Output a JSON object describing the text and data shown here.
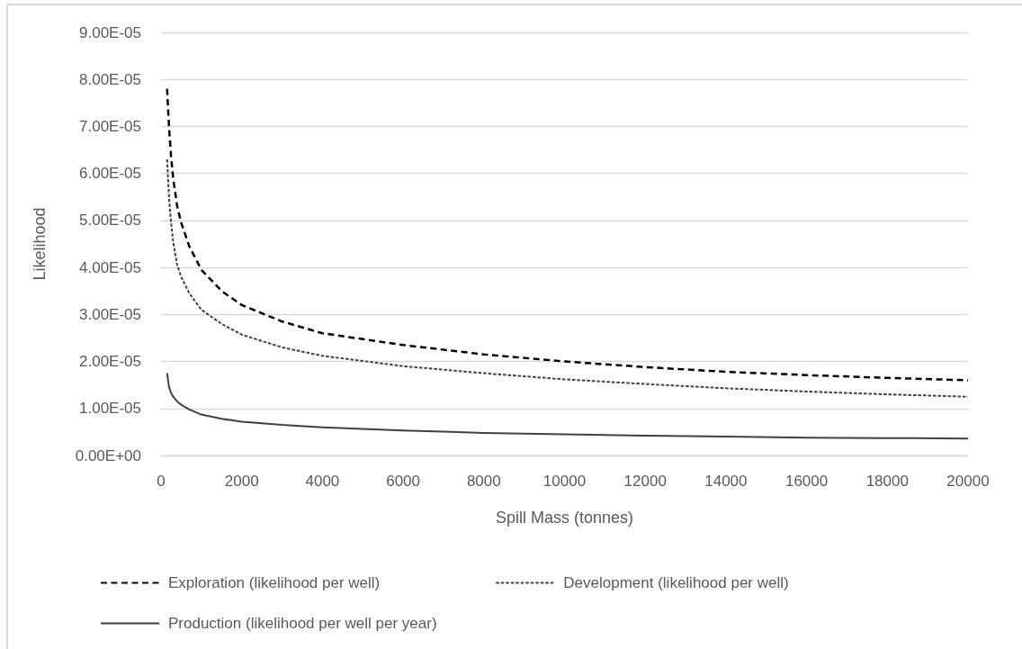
{
  "chart_data": {
    "type": "line",
    "xlabel": "Spill Mass (tonnes)",
    "ylabel": "Likelihood",
    "x": [
      150,
      200,
      250,
      300,
      400,
      500,
      700,
      1000,
      1500,
      2000,
      3000,
      4000,
      6000,
      8000,
      10000,
      12000,
      14000,
      16000,
      18000,
      20000
    ],
    "series": [
      {
        "name": "Exploration (likelihood per well)",
        "color": "#000000",
        "line_style": "dashed",
        "values": [
          7.8e-05,
          6.95e-05,
          6.35e-05,
          5.9e-05,
          5.3e-05,
          4.95e-05,
          4.45e-05,
          3.95e-05,
          3.5e-05,
          3.2e-05,
          2.85e-05,
          2.6e-05,
          2.35e-05,
          2.15e-05,
          2e-05,
          1.88e-05,
          1.78e-05,
          1.71e-05,
          1.65e-05,
          1.6e-05
        ]
      },
      {
        "name": "Development (likelihood per well)",
        "color": "#404040",
        "line_style": "dotted",
        "values": [
          6.3e-05,
          5.45e-05,
          4.95e-05,
          4.55e-05,
          4.05e-05,
          3.8e-05,
          3.45e-05,
          3.1e-05,
          2.8e-05,
          2.57e-05,
          2.3e-05,
          2.12e-05,
          1.9e-05,
          1.75e-05,
          1.62e-05,
          1.52e-05,
          1.43e-05,
          1.36e-05,
          1.3e-05,
          1.25e-05
        ]
      },
      {
        "name": "Production (likelihood per well per year)",
        "color": "#404040",
        "line_style": "solid",
        "values": [
          1.75e-05,
          1.45e-05,
          1.33e-05,
          1.25e-05,
          1.15e-05,
          1.08e-05,
          9.8e-06,
          8.7e-06,
          7.8e-06,
          7.2e-06,
          6.5e-06,
          6e-06,
          5.3e-06,
          4.8e-06,
          4.5e-06,
          4.2e-06,
          4e-06,
          3.8e-06,
          3.7e-06,
          3.6e-06
        ]
      }
    ],
    "xlim": [
      0,
      20000
    ],
    "xticks": [
      0,
      2000,
      4000,
      6000,
      8000,
      10000,
      12000,
      14000,
      16000,
      18000,
      20000
    ],
    "ylim": [
      0,
      9e-05
    ],
    "yticks": [
      {
        "value": 0,
        "label": "0.00E+00"
      },
      {
        "value": 1e-05,
        "label": "1.00E-05"
      },
      {
        "value": 2e-05,
        "label": "2.00E-05"
      },
      {
        "value": 3e-05,
        "label": "3.00E-05"
      },
      {
        "value": 4e-05,
        "label": "4.00E-05"
      },
      {
        "value": 5e-05,
        "label": "5.00E-05"
      },
      {
        "value": 6e-05,
        "label": "6.00E-05"
      },
      {
        "value": 7e-05,
        "label": "7.00E-05"
      },
      {
        "value": 8e-05,
        "label": "8.00E-05"
      },
      {
        "value": 9e-05,
        "label": "9.00E-05"
      }
    ],
    "grid": "y",
    "legend": "bottom",
    "marker": "none"
  }
}
